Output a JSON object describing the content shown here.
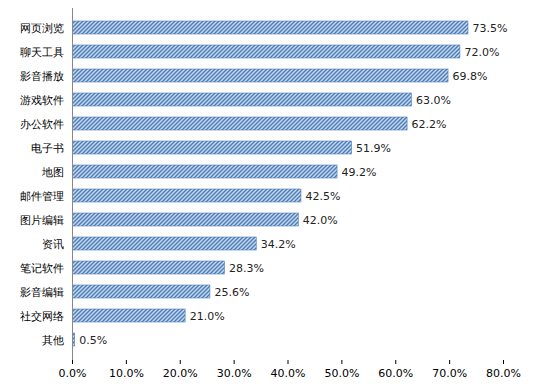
{
  "chart_data": {
    "type": "bar",
    "orientation": "horizontal",
    "categories": [
      "网页浏览",
      "聊天工具",
      "影音播放",
      "游戏软件",
      "办公软件",
      "电子书",
      "地图",
      "邮件管理",
      "图片编辑",
      "资讯",
      "笔记软件",
      "影音编辑",
      "社交网络",
      "其他"
    ],
    "values": [
      73.5,
      72.0,
      69.8,
      63.0,
      62.2,
      51.9,
      49.2,
      42.5,
      42.0,
      34.2,
      28.3,
      25.6,
      21.0,
      0.5
    ],
    "value_labels": [
      "73.5%",
      "72.0%",
      "69.8%",
      "63.0%",
      "62.2%",
      "51.9%",
      "49.2%",
      "42.5%",
      "42.0%",
      "34.2%",
      "28.3%",
      "25.6%",
      "21.0%",
      "0.5%"
    ],
    "data_labels": true,
    "color": "#4a7ebb",
    "xlim": [
      0,
      80
    ],
    "xticks": [
      {
        "value": 0,
        "label": "0.0%"
      },
      {
        "value": 10,
        "label": "10.0%"
      },
      {
        "value": 20,
        "label": "20.0%"
      },
      {
        "value": 30,
        "label": "30.0%"
      },
      {
        "value": 40,
        "label": "40.0%"
      },
      {
        "value": 50,
        "label": "50.0%"
      },
      {
        "value": 60,
        "label": "60.0%"
      },
      {
        "value": 70,
        "label": "70.0%"
      },
      {
        "value": 80,
        "label": "80.0%"
      }
    ],
    "grid": false
  }
}
